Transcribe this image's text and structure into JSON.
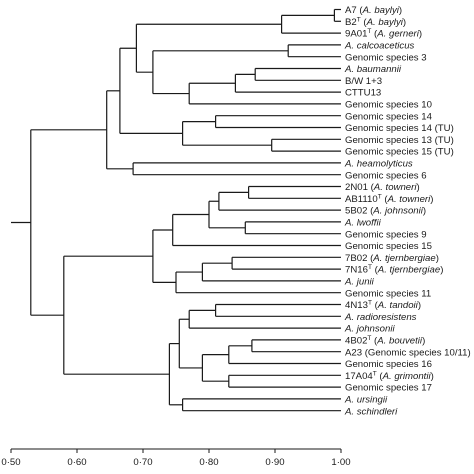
{
  "dendrogram": {
    "axis": {
      "ticks": [
        {
          "value": 0.5,
          "label": "0·50"
        },
        {
          "value": 0.6,
          "label": "0·60"
        },
        {
          "value": 0.7,
          "label": "0·70"
        },
        {
          "value": 0.8,
          "label": "0·80"
        },
        {
          "value": 0.9,
          "label": "0·90"
        },
        {
          "value": 1.0,
          "label": "1·00"
        }
      ]
    },
    "leaves": [
      {
        "segs": [
          {
            "t": "A7 ("
          },
          {
            "t": "A. baylyi",
            "i": true
          },
          {
            "t": ")"
          }
        ]
      },
      {
        "segs": [
          {
            "t": "B2"
          },
          {
            "t": "T",
            "sup": true
          },
          {
            "t": " ("
          },
          {
            "t": "A. baylyi",
            "i": true
          },
          {
            "t": ")"
          }
        ]
      },
      {
        "segs": [
          {
            "t": "9A01"
          },
          {
            "t": "T",
            "sup": true
          },
          {
            "t": " ("
          },
          {
            "t": "A. gerneri",
            "i": true
          },
          {
            "t": ")"
          }
        ]
      },
      {
        "segs": [
          {
            "t": "A. calcoaceticus",
            "i": true
          }
        ]
      },
      {
        "segs": [
          {
            "t": "Genomic species 3"
          }
        ]
      },
      {
        "segs": [
          {
            "t": "A. baumannii",
            "i": true
          }
        ]
      },
      {
        "segs": [
          {
            "t": "B/W 1+3"
          }
        ]
      },
      {
        "segs": [
          {
            "t": "CTTU13"
          }
        ]
      },
      {
        "segs": [
          {
            "t": "Genomic species 10"
          }
        ]
      },
      {
        "segs": [
          {
            "t": "Genomic species 14"
          }
        ]
      },
      {
        "segs": [
          {
            "t": "Genomic species 14 (TU)"
          }
        ]
      },
      {
        "segs": [
          {
            "t": "Genomic species 13 (TU)"
          }
        ]
      },
      {
        "segs": [
          {
            "t": "Genomic species 15 (TU)"
          }
        ]
      },
      {
        "segs": [
          {
            "t": "A. heamolyticus",
            "i": true
          }
        ]
      },
      {
        "segs": [
          {
            "t": "Genomic species 6"
          }
        ]
      },
      {
        "segs": [
          {
            "t": "2N01 ("
          },
          {
            "t": "A. towneri",
            "i": true
          },
          {
            "t": ")"
          }
        ]
      },
      {
        "segs": [
          {
            "t": "AB1110"
          },
          {
            "t": "T",
            "sup": true
          },
          {
            "t": " ("
          },
          {
            "t": "A. towneri",
            "i": true
          },
          {
            "t": ")"
          }
        ]
      },
      {
        "segs": [
          {
            "t": "5B02 ("
          },
          {
            "t": "A. johnsonii",
            "i": true
          },
          {
            "t": ")"
          }
        ]
      },
      {
        "segs": [
          {
            "t": "A. lwoffii",
            "i": true
          }
        ]
      },
      {
        "segs": [
          {
            "t": "Genomic species 9"
          }
        ]
      },
      {
        "segs": [
          {
            "t": "Genomic species 15"
          }
        ]
      },
      {
        "segs": [
          {
            "t": "7B02 ("
          },
          {
            "t": "A. tjernbergiae",
            "i": true
          },
          {
            "t": ")"
          }
        ]
      },
      {
        "segs": [
          {
            "t": "7N16"
          },
          {
            "t": "T",
            "sup": true
          },
          {
            "t": " ("
          },
          {
            "t": "A. tjernbergiae",
            "i": true
          },
          {
            "t": ")"
          }
        ]
      },
      {
        "segs": [
          {
            "t": "A. junii",
            "i": true
          }
        ]
      },
      {
        "segs": [
          {
            "t": "Genomic species 11"
          }
        ]
      },
      {
        "segs": [
          {
            "t": "4N13"
          },
          {
            "t": "T",
            "sup": true
          },
          {
            "t": " ("
          },
          {
            "t": "A. tandoii",
            "i": true
          },
          {
            "t": ")"
          }
        ]
      },
      {
        "segs": [
          {
            "t": "A. radioresistens",
            "i": true
          }
        ]
      },
      {
        "segs": [
          {
            "t": "A. johnsonii",
            "i": true
          }
        ]
      },
      {
        "segs": [
          {
            "t": "4B02"
          },
          {
            "t": "T",
            "sup": true
          },
          {
            "t": " ("
          },
          {
            "t": "A. bouvetii",
            "i": true
          },
          {
            "t": ")"
          }
        ]
      },
      {
        "segs": [
          {
            "t": "A23 (Genomic species 10/11)"
          }
        ]
      },
      {
        "segs": [
          {
            "t": "Genomic species 16"
          }
        ]
      },
      {
        "segs": [
          {
            "t": "17A04"
          },
          {
            "t": "T",
            "sup": true
          },
          {
            "t": " ("
          },
          {
            "t": "A. grimontii",
            "i": true
          },
          {
            "t": ")"
          }
        ]
      },
      {
        "segs": [
          {
            "t": "Genomic species 17"
          }
        ]
      },
      {
        "segs": [
          {
            "t": "A. ursingii",
            "i": true
          }
        ]
      },
      {
        "segs": [
          {
            "t": "A. schindleri",
            "i": true
          }
        ]
      }
    ],
    "tree": {
      "v": 0.53,
      "c": [
        {
          "v": 0.645,
          "c": [
            {
              "v": 0.665,
              "c": [
                {
                  "v": 0.69,
                  "c": [
                    {
                      "v": 0.91,
                      "c": [
                        {
                          "v": 0.99,
                          "c": [
                            {
                              "l": 0
                            },
                            {
                              "l": 1
                            }
                          ]
                        },
                        {
                          "l": 2
                        }
                      ]
                    },
                    {
                      "v": 0.715,
                      "c": [
                        {
                          "v": 0.92,
                          "c": [
                            {
                              "l": 3
                            },
                            {
                              "l": 4
                            }
                          ]
                        },
                        {
                          "v": 0.77,
                          "c": [
                            {
                              "v": 0.84,
                              "c": [
                                {
                                  "v": 0.87,
                                  "c": [
                                    {
                                      "l": 5
                                    },
                                    {
                                      "l": 6
                                    }
                                  ]
                                },
                                {
                                  "l": 7
                                }
                              ]
                            },
                            {
                              "l": 8
                            }
                          ]
                        }
                      ]
                    }
                  ]
                },
                {
                  "v": 0.76,
                  "c": [
                    {
                      "v": 0.81,
                      "c": [
                        {
                          "l": 9
                        },
                        {
                          "l": 10
                        }
                      ]
                    },
                    {
                      "v": 0.895,
                      "c": [
                        {
                          "l": 11
                        },
                        {
                          "l": 12
                        }
                      ]
                    }
                  ]
                }
              ]
            },
            {
              "v": 0.685,
              "c": [
                {
                  "l": 13
                },
                {
                  "l": 14
                }
              ]
            }
          ]
        },
        {
          "v": 0.58,
          "c": [
            {
              "v": 0.715,
              "c": [
                {
                  "v": 0.745,
                  "c": [
                    {
                      "v": 0.8,
                      "c": [
                        {
                          "v": 0.815,
                          "c": [
                            {
                              "v": 0.86,
                              "c": [
                                {
                                  "l": 15
                                },
                                {
                                  "l": 16
                                }
                              ]
                            },
                            {
                              "l": 17
                            }
                          ]
                        },
                        {
                          "v": 0.855,
                          "c": [
                            {
                              "l": 18
                            },
                            {
                              "l": 19
                            }
                          ]
                        }
                      ]
                    },
                    {
                      "l": 20
                    }
                  ]
                },
                {
                  "v": 0.75,
                  "c": [
                    {
                      "v": 0.79,
                      "c": [
                        {
                          "v": 0.835,
                          "c": [
                            {
                              "l": 21
                            },
                            {
                              "l": 22
                            }
                          ]
                        },
                        {
                          "l": 23
                        }
                      ]
                    },
                    {
                      "l": 24
                    }
                  ]
                }
              ]
            },
            {
              "v": 0.74,
              "c": [
                {
                  "v": 0.755,
                  "c": [
                    {
                      "v": 0.77,
                      "c": [
                        {
                          "v": 0.81,
                          "c": [
                            {
                              "l": 25
                            },
                            {
                              "l": 26
                            }
                          ]
                        },
                        {
                          "l": 27
                        }
                      ]
                    },
                    {
                      "v": 0.79,
                      "c": [
                        {
                          "v": 0.83,
                          "c": [
                            {
                              "v": 0.865,
                              "c": [
                                {
                                  "l": 28
                                },
                                {
                                  "l": 29
                                }
                              ]
                            },
                            {
                              "l": 30
                            }
                          ]
                        },
                        {
                          "v": 0.83,
                          "c": [
                            {
                              "l": 31
                            },
                            {
                              "l": 32
                            }
                          ]
                        }
                      ]
                    }
                  ]
                },
                {
                  "v": 0.76,
                  "c": [
                    {
                      "l": 33
                    },
                    {
                      "l": 34
                    }
                  ]
                }
              ]
            }
          ]
        }
      ]
    }
  }
}
